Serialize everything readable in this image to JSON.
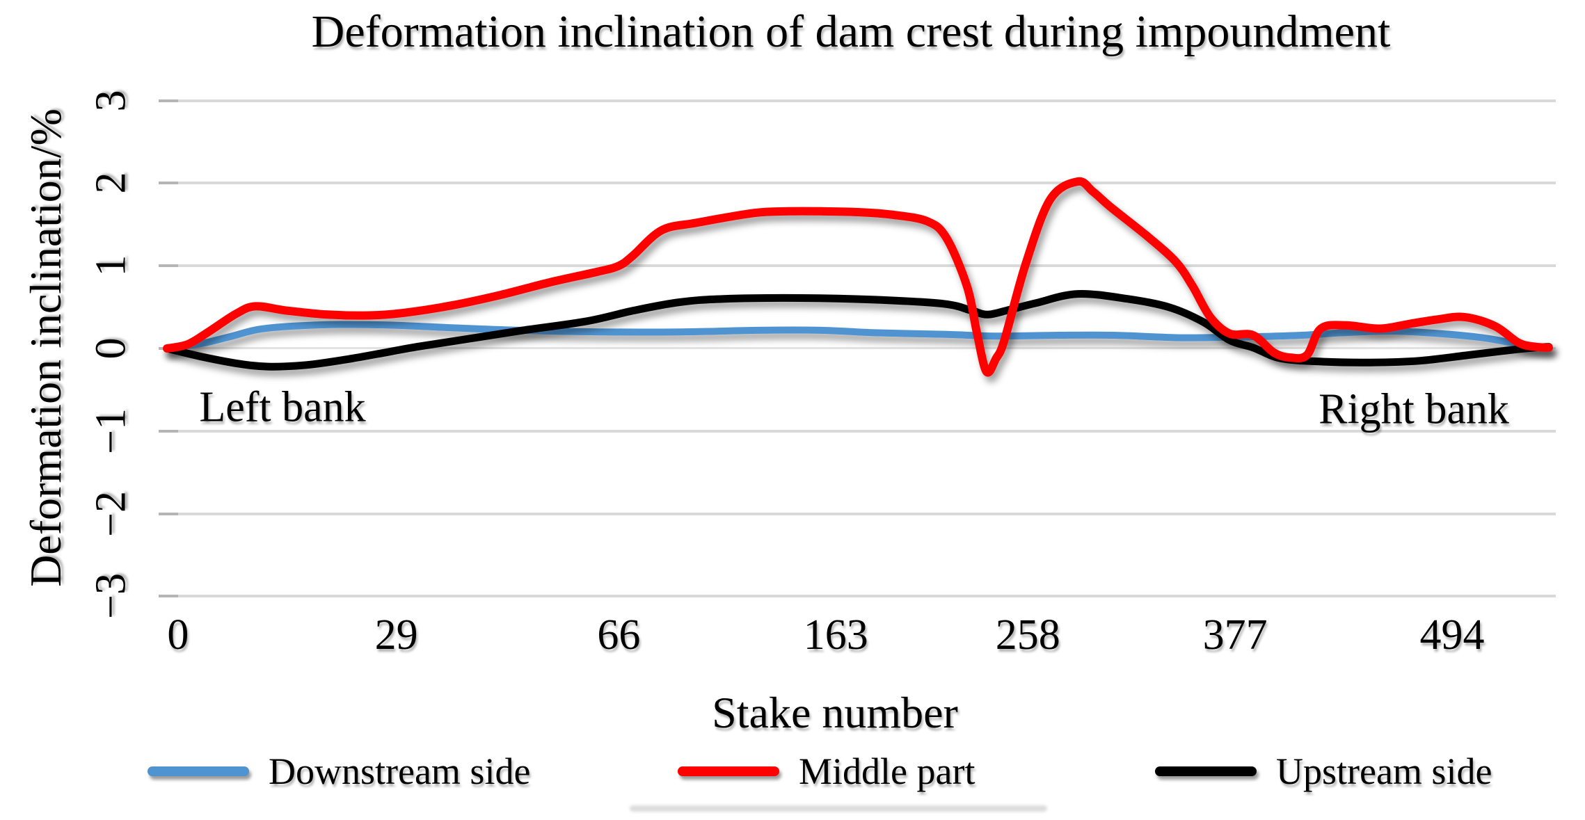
{
  "title": "Deformation inclination of dam crest during impoundment",
  "y_axis": {
    "label": "Deformation inclination/%",
    "tick_labels": [
      "3",
      "2",
      "1",
      "0",
      "−1",
      "−2",
      "−3"
    ],
    "tick_values": [
      3,
      2,
      1,
      0,
      -1,
      -2,
      -3
    ]
  },
  "x_axis": {
    "label": "Stake number",
    "tick_labels": [
      "0",
      "29",
      "66",
      "163",
      "258",
      "377",
      "494"
    ],
    "tick_positions_pct": [
      0.8,
      16.6,
      32.7,
      48.4,
      62.3,
      77.3,
      93.0
    ]
  },
  "annotations": [
    {
      "text": "Left bank"
    },
    {
      "text": "Right bank"
    }
  ],
  "legend": [
    {
      "label": "Downstream side",
      "color": "#4f93d0"
    },
    {
      "label": "Middle part",
      "color": "#fe0000"
    },
    {
      "label": "Upstream side",
      "color": "#000000"
    }
  ],
  "chart_data": {
    "type": "line",
    "title": "Deformation inclination of dam crest during impoundment",
    "xlabel": "Stake number",
    "ylabel": "Deformation inclination/%",
    "ylim": [
      -3,
      3
    ],
    "grid": "horizontal",
    "legend_position": "bottom",
    "x_axis_type": "category",
    "x_unit": "percent of distance along dam crest (stake axis is categorical)",
    "x_tick_labels": [
      "0",
      "29",
      "66",
      "163",
      "258",
      "377",
      "494"
    ],
    "x_tick_positions_pct": [
      0.8,
      16.6,
      32.7,
      48.4,
      62.3,
      77.3,
      93.0
    ],
    "annotations": [
      "Left bank (left end of crest)",
      "Right bank (right end of crest)"
    ],
    "series": [
      {
        "name": "Downstream side",
        "color": "#4f93d0",
        "points": [
          [
            0,
            0
          ],
          [
            2.5,
            0.06
          ],
          [
            4.5,
            0.14
          ],
          [
            6.6,
            0.23
          ],
          [
            9.1,
            0.27
          ],
          [
            12.6,
            0.29
          ],
          [
            16.6,
            0.28
          ],
          [
            20.6,
            0.25
          ],
          [
            25.4,
            0.22
          ],
          [
            31.2,
            0.2
          ],
          [
            37.3,
            0.2
          ],
          [
            42.8,
            0.22
          ],
          [
            47.3,
            0.22
          ],
          [
            51.2,
            0.19
          ],
          [
            56.4,
            0.17
          ],
          [
            59.9,
            0.15
          ],
          [
            64.5,
            0.16
          ],
          [
            68.5,
            0.16
          ],
          [
            73.5,
            0.13
          ],
          [
            78.0,
            0.14
          ],
          [
            82.1,
            0.16
          ],
          [
            85.1,
            0.19
          ],
          [
            88.6,
            0.21
          ],
          [
            92.1,
            0.18
          ],
          [
            95.2,
            0.13
          ],
          [
            97.9,
            0.05
          ],
          [
            99.2,
            0.02
          ],
          [
            100,
            0.01
          ]
        ]
      },
      {
        "name": "Middle part",
        "color": "#fe0000",
        "points": [
          [
            0,
            0
          ],
          [
            1.5,
            0.05
          ],
          [
            3.0,
            0.2
          ],
          [
            5.0,
            0.42
          ],
          [
            6.4,
            0.51
          ],
          [
            8.6,
            0.46
          ],
          [
            11.6,
            0.41
          ],
          [
            14.6,
            0.4
          ],
          [
            17.1,
            0.43
          ],
          [
            20.6,
            0.52
          ],
          [
            24.2,
            0.65
          ],
          [
            27.7,
            0.8
          ],
          [
            31.2,
            0.93
          ],
          [
            32.7,
            1.0
          ],
          [
            33.7,
            1.12
          ],
          [
            35.8,
            1.43
          ],
          [
            38.3,
            1.52
          ],
          [
            42.5,
            1.64
          ],
          [
            45.0,
            1.66
          ],
          [
            47.3,
            1.66
          ],
          [
            50.0,
            1.65
          ],
          [
            52.4,
            1.62
          ],
          [
            55.0,
            1.54
          ],
          [
            56.4,
            1.34
          ],
          [
            57.9,
            0.75
          ],
          [
            58.6,
            0.2
          ],
          [
            59.3,
            -0.28
          ],
          [
            60.0,
            -0.12
          ],
          [
            60.6,
            0.1
          ],
          [
            62.1,
            1.0
          ],
          [
            63.9,
            1.8
          ],
          [
            65.9,
            2.02
          ],
          [
            67.0,
            1.9
          ],
          [
            68.3,
            1.71
          ],
          [
            71.0,
            1.35
          ],
          [
            73.0,
            1.05
          ],
          [
            74.2,
            0.76
          ],
          [
            75.5,
            0.38
          ],
          [
            76.9,
            0.18
          ],
          [
            78.6,
            0.16
          ],
          [
            80.1,
            -0.05
          ],
          [
            81.3,
            -0.11
          ],
          [
            82.5,
            -0.08
          ],
          [
            83.5,
            0.24
          ],
          [
            85.3,
            0.28
          ],
          [
            87.8,
            0.24
          ],
          [
            90.0,
            0.3
          ],
          [
            91.9,
            0.35
          ],
          [
            93.9,
            0.38
          ],
          [
            96.1,
            0.27
          ],
          [
            97.8,
            0.07
          ],
          [
            99.0,
            0.02
          ],
          [
            100,
            0.01
          ]
        ]
      },
      {
        "name": "Upstream side",
        "color": "#000000",
        "points": [
          [
            0,
            0
          ],
          [
            2.5,
            -0.1
          ],
          [
            5.0,
            -0.18
          ],
          [
            7.3,
            -0.22
          ],
          [
            10.1,
            -0.2
          ],
          [
            13.1,
            -0.13
          ],
          [
            16.1,
            -0.04
          ],
          [
            18.1,
            0.02
          ],
          [
            21.2,
            0.1
          ],
          [
            25.4,
            0.21
          ],
          [
            30.4,
            0.33
          ],
          [
            33.8,
            0.46
          ],
          [
            37.1,
            0.56
          ],
          [
            40.3,
            0.6
          ],
          [
            45.8,
            0.61
          ],
          [
            51.2,
            0.59
          ],
          [
            56.2,
            0.54
          ],
          [
            58.2,
            0.46
          ],
          [
            59.4,
            0.41
          ],
          [
            61.0,
            0.47
          ],
          [
            62.9,
            0.55
          ],
          [
            65.9,
            0.66
          ],
          [
            69.5,
            0.6
          ],
          [
            72.5,
            0.5
          ],
          [
            75.0,
            0.32
          ],
          [
            76.9,
            0.1
          ],
          [
            78.6,
            0.01
          ],
          [
            80.6,
            -0.12
          ],
          [
            83.6,
            -0.16
          ],
          [
            87.1,
            -0.17
          ],
          [
            90.6,
            -0.15
          ],
          [
            94.2,
            -0.08
          ],
          [
            97.2,
            -0.02
          ],
          [
            99.0,
            0.01
          ],
          [
            100,
            0.02
          ]
        ]
      }
    ]
  }
}
